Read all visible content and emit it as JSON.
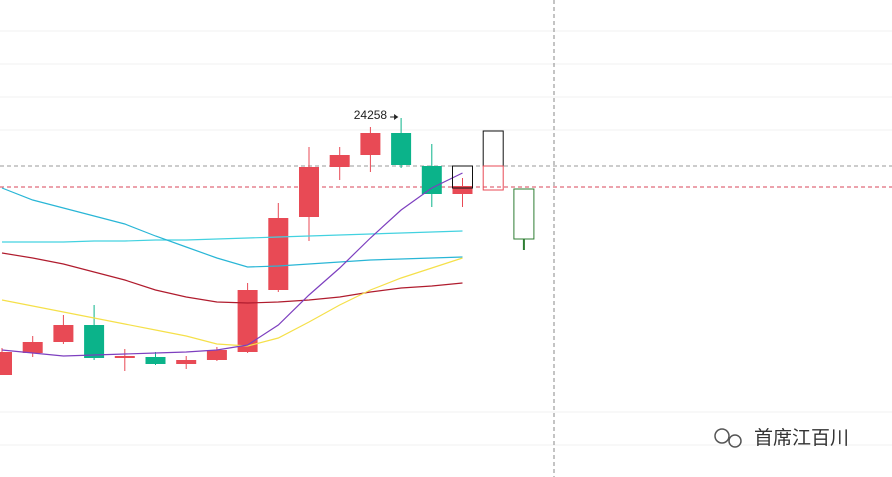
{
  "chart_data": {
    "type": "candlestick",
    "ylim": [
      23540,
      24494
    ],
    "up_color": "#e84a55",
    "down_color": "#0bb38a",
    "open": [
      23744,
      23788,
      23810,
      23844,
      23778,
      23780,
      23766,
      23774,
      23790,
      23914,
      24060,
      24160,
      24184,
      24228,
      24162,
      24106
    ],
    "high": [
      23798,
      23822,
      23864,
      23884,
      23796,
      23790,
      23782,
      23800,
      23928,
      24088,
      24200,
      24200,
      24240,
      24258,
      24206,
      24138
    ],
    "low": [
      23744,
      23780,
      23806,
      23774,
      23752,
      23764,
      23756,
      23772,
      23788,
      23910,
      24012,
      24134,
      24150,
      24158,
      24080,
      24080
    ],
    "close": [
      23790,
      23810,
      23844,
      23778,
      23782,
      23766,
      23774,
      23794,
      23914,
      24058,
      24160,
      24184,
      24228,
      24164,
      24106,
      24122
    ],
    "projections": [
      {
        "open": 24118,
        "close": 24162,
        "color": "#111111"
      },
      {
        "open": 24162,
        "close": 24232,
        "color": "#111111"
      },
      {
        "open": 24162,
        "close": 24114,
        "color": "#e84a55"
      },
      {
        "open": 24116,
        "close": 24016,
        "low": 23994,
        "color": "#2e7d32"
      }
    ],
    "series": [
      {
        "color": "#43d2e0",
        "values": [
          24010,
          24010,
          24010,
          24012,
          24012,
          24014,
          24014,
          24016,
          24018,
          24020,
          24022,
          24024,
          24026,
          24028,
          24030,
          24032
        ]
      },
      {
        "color": "#29b6d6",
        "values": [
          24118,
          24094,
          24078,
          24062,
          24046,
          24022,
          24000,
          23978,
          23960,
          23962,
          23966,
          23970,
          23974,
          23976,
          23978,
          23980
        ]
      },
      {
        "color": "#b01c2e",
        "values": [
          23988,
          23978,
          23966,
          23950,
          23934,
          23914,
          23900,
          23890,
          23888,
          23890,
          23894,
          23900,
          23910,
          23918,
          23922,
          23928
        ]
      },
      {
        "color": "#f5e04a",
        "values": [
          23894,
          23882,
          23870,
          23858,
          23846,
          23834,
          23822,
          23806,
          23802,
          23818,
          23850,
          23884,
          23914,
          23938,
          23958,
          23978
        ]
      },
      {
        "color": "#7d3fbf",
        "values": [
          23794,
          23788,
          23782,
          23784,
          23786,
          23788,
          23790,
          23794,
          23804,
          23844,
          23904,
          23958,
          24018,
          24074,
          24118,
          24148
        ]
      }
    ],
    "ref_lines": [
      {
        "value": 24162,
        "color": "#999999"
      },
      {
        "value": 24120,
        "color": "#d9465a"
      }
    ],
    "watermark": "首席江百川"
  }
}
